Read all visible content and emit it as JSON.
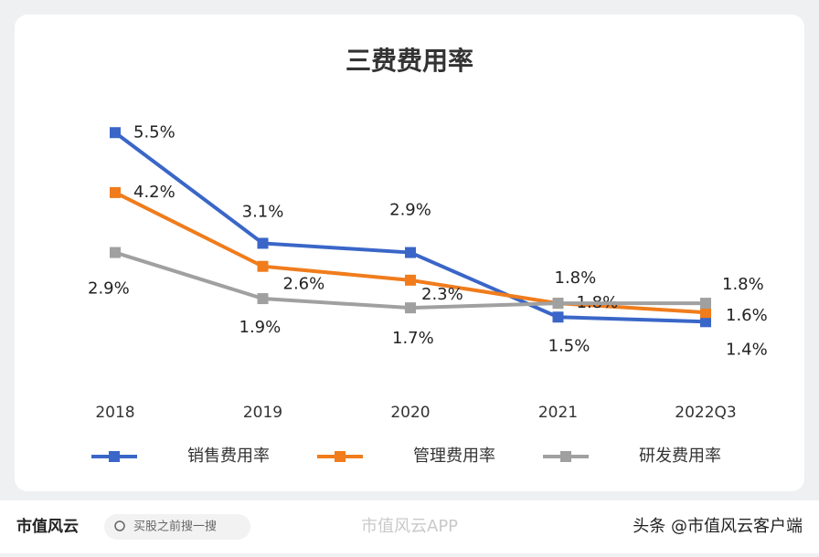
{
  "chart_data": {
    "type": "line",
    "title": "三费费用率",
    "categories": [
      "2018",
      "2019",
      "2020",
      "2021",
      "2022Q3"
    ],
    "series": [
      {
        "name": "销售费用率",
        "color": "#3a66c8",
        "values": [
          5.5,
          3.1,
          2.9,
          1.5,
          1.4
        ],
        "value_labels": [
          "5.5%",
          "3.1%",
          "2.9%",
          "1.5%",
          "1.4%"
        ]
      },
      {
        "name": "管理费用率",
        "color": "#f07c1c",
        "values": [
          4.2,
          2.6,
          2.3,
          1.8,
          1.6
        ],
        "value_labels": [
          "4.2%",
          "2.6%",
          "2.3%",
          "1.8%",
          "1.6%"
        ]
      },
      {
        "name": "研发费用率",
        "color": "#a0a0a0",
        "values": [
          2.9,
          1.9,
          1.7,
          1.8,
          1.8
        ],
        "value_labels": [
          "2.9%",
          "1.9%",
          "1.7%",
          "1.8%",
          "1.8%"
        ]
      }
    ]
  },
  "footer": {
    "logo": "市值风云",
    "search": "买股之前搜一搜",
    "watermark": "市值风云APP",
    "credit": "头条 @市值风云客户端"
  }
}
